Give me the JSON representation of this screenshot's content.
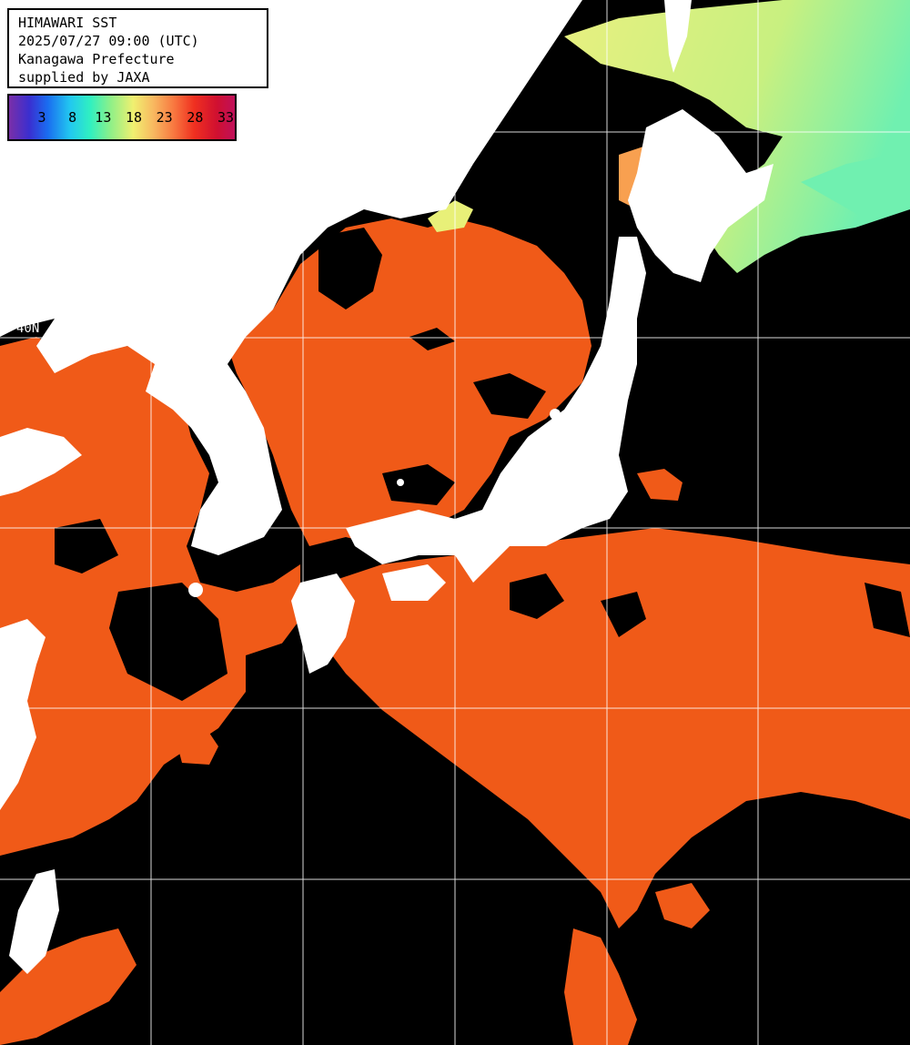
{
  "info": {
    "line1": "HIMAWARI SST",
    "line2": "2025/07/27 09:00 (UTC)",
    "line3": "Kanagawa Prefecture",
    "line4": "supplied by JAXA"
  },
  "legend": {
    "labels": [
      "3",
      "8",
      "13",
      "18",
      "23",
      "28",
      "33"
    ]
  },
  "grid": {
    "lat_label": "40N"
  },
  "colors": {
    "land": "#ffffff",
    "no_data": "#000000",
    "warm_sea": "#f05a18",
    "cool_sea": "#e8f078",
    "grid_line": "#ffffff"
  }
}
